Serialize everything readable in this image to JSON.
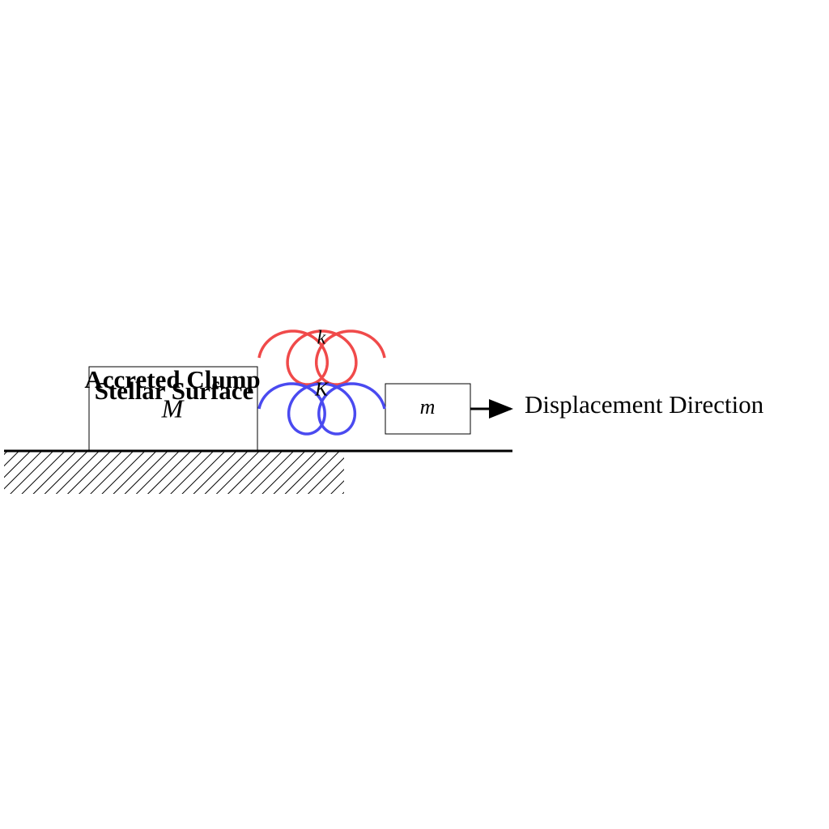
{
  "labels": {
    "accreted_clump": "Accreted Clump",
    "stellar_surface": "Stellar Surface",
    "big_mass": "M",
    "small_mass": "m",
    "spring_k_small": "k",
    "spring_k_big": "K",
    "arrow": "Displacement Direction"
  }
}
